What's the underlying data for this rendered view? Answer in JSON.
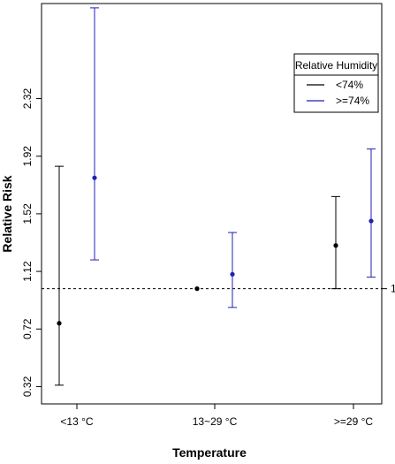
{
  "chart_data": {
    "type": "scatter",
    "xlabel": "Temperature",
    "ylabel": "Relative Risk",
    "categories": [
      "<13 °C",
      "13~29 °C",
      ">=29 °C"
    ],
    "yticks": [
      "0.32",
      "0.72",
      "1.12",
      "1.52",
      "1.92",
      "2.32"
    ],
    "ylim": [
      0.2,
      2.98
    ],
    "reference_line": {
      "value": 1,
      "label": "1",
      "style": "dotted"
    },
    "legend": {
      "title": "Relative Humidity",
      "position": "top-right"
    },
    "grid": false,
    "series": [
      {
        "name": "<74%",
        "color": "#000000",
        "points": [
          {
            "category": "<13 °C",
            "estimate": 0.76,
            "lower": 0.33,
            "upper": 1.85
          },
          {
            "category": "13~29 °C",
            "estimate": 1.0,
            "lower": 1.0,
            "upper": 1.0
          },
          {
            "category": ">=29 °C",
            "estimate": 1.3,
            "lower": 1.0,
            "upper": 1.64
          }
        ]
      },
      {
        "name": ">=74%",
        "color": "#1f1fb4",
        "points": [
          {
            "category": "<13 °C",
            "estimate": 1.77,
            "lower": 1.2,
            "upper": 2.95
          },
          {
            "category": "13~29 °C",
            "estimate": 1.1,
            "lower": 0.87,
            "upper": 1.39
          },
          {
            "category": ">=29 °C",
            "estimate": 1.47,
            "lower": 1.08,
            "upper": 1.97
          }
        ]
      }
    ]
  }
}
